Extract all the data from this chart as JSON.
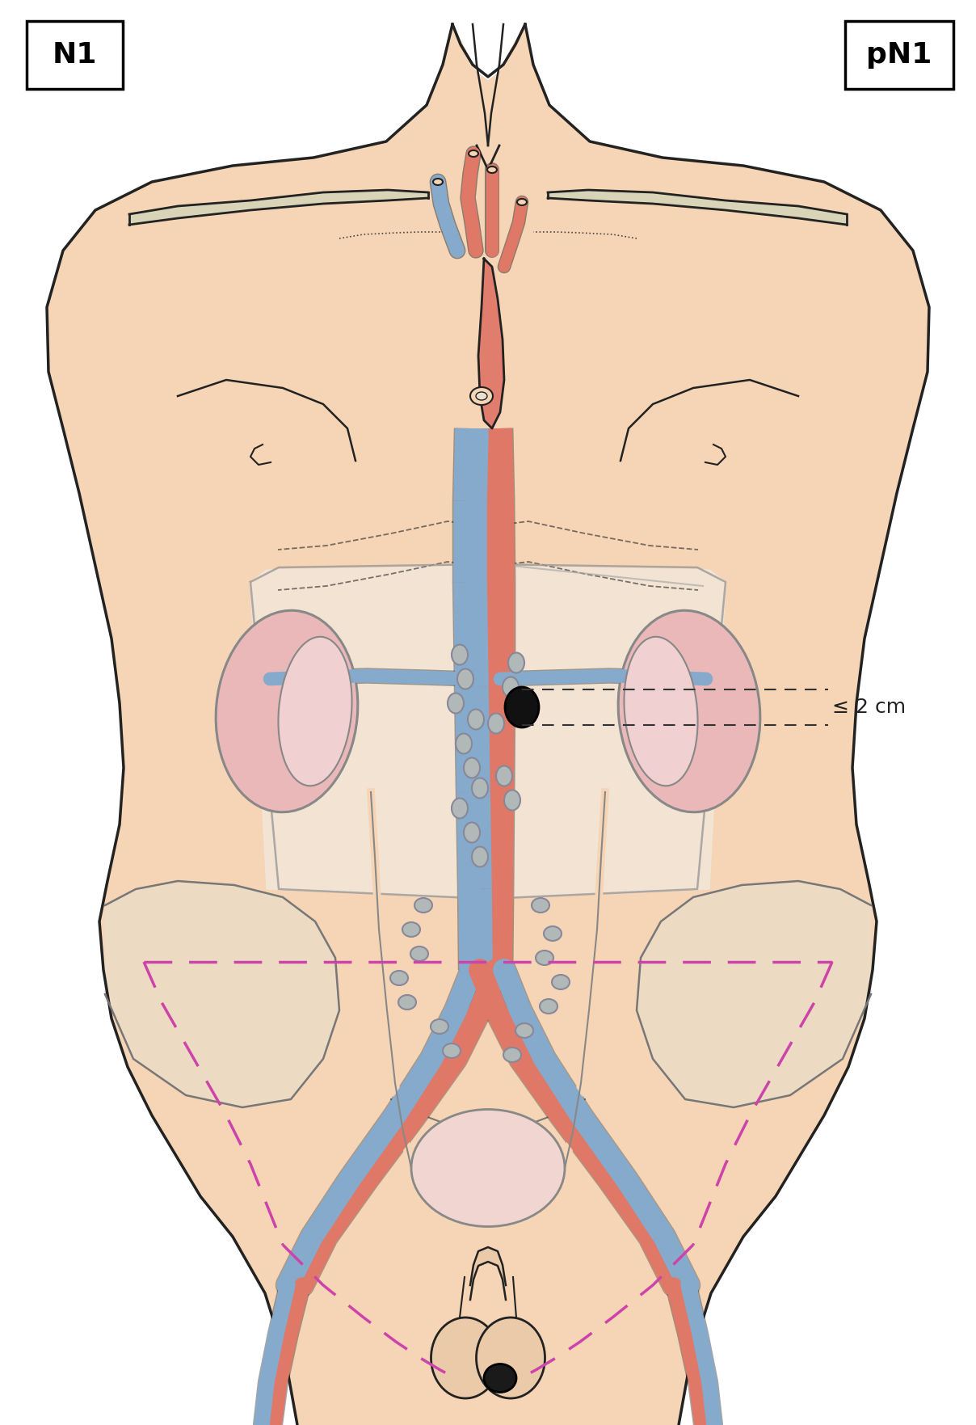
{
  "label_N1": "N1",
  "label_pN1": "pN1",
  "annotation_text": "≤ 2 cm",
  "skin_color": "#F5D5B5",
  "outline_color": "#222222",
  "aorta_red": "#E07868",
  "vena_blue": "#85AACC",
  "lymph_node_color": "#B0B8B8",
  "lymph_node_dark": "#888898",
  "black_node_color": "#111111",
  "magenta_dashed": "#CC44AA",
  "kidney_color": "#EAB8B8",
  "abdominal_fill": "#F8EDE0",
  "clavicle_color": "#D8D4B8",
  "figsize": [
    12.08,
    17.63
  ],
  "dpi": 100
}
